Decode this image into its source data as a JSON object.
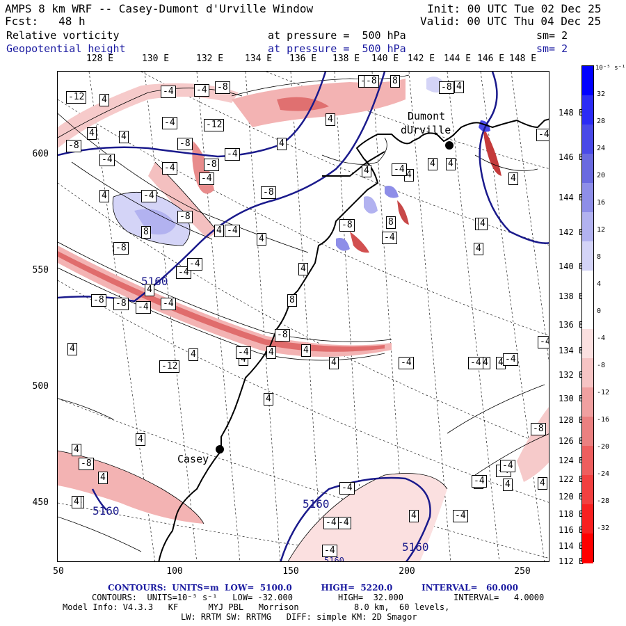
{
  "header": {
    "title": "AMPS 8 km WRF -- Casey-Dumont d'Urville Window",
    "init": "Init: 00 UTC Tue 02 Dec 25",
    "forecast": "Fcst:   48 h",
    "valid": "Valid: 00 UTC Thu 04 Dec 25",
    "field1_name": "Relative vorticity",
    "field1_level": "at pressure =  500 hPa",
    "field1_sm": "sm= 2",
    "field2_name": "Geopotential height",
    "field2_level": "at pressure =  500 hPa",
    "field2_sm": "sm= 2"
  },
  "axes": {
    "x_ticks": [
      "50",
      "100",
      "150",
      "200",
      "250"
    ],
    "y_ticks": [
      "600",
      "550",
      "500",
      "450"
    ],
    "top_lon_labels": [
      "128 E",
      "130 E",
      "132 E",
      "134 E",
      "136 E",
      "138 E",
      "140 E",
      "142 E",
      "144 E",
      "146 E",
      "148 E"
    ],
    "right_lon_labels": [
      "148 E",
      "146 E",
      "144 E",
      "142 E",
      "140 E",
      "138 E",
      "136 E",
      "134 E",
      "132 E",
      "130 E",
      "128 E",
      "126 E",
      "124 E",
      "122 E",
      "120 E",
      "118 E",
      "116 E",
      "114 E",
      "112 E"
    ]
  },
  "colorbar": {
    "unit": "10⁻⁵ s⁻¹",
    "labels": [
      "32",
      "28",
      "24",
      "20",
      "16",
      "12",
      "8",
      "4",
      "0",
      "-4",
      "-8",
      "-12",
      "-16",
      "-20",
      "-24",
      "-28",
      "-32"
    ],
    "colors": [
      "#0000ff",
      "#2b2bf5",
      "#4a4ae8",
      "#6a6ae0",
      "#8e8ee8",
      "#b2b2f0",
      "#d4d4f7",
      "#ffffff",
      "#ffffff",
      "#fbe0e0",
      "#f6c4c4",
      "#f0a0a0",
      "#eb8080",
      "#ee5e5e",
      "#f24040",
      "#f82020",
      "#ff0000"
    ]
  },
  "places": {
    "casey": "Casey",
    "dumont1": "Dumont",
    "dumont2": "dUrville"
  },
  "height_labels": [
    "5160",
    "5160",
    "5160",
    "5160",
    "5160"
  ],
  "vorticity_labels": [
    "-12",
    "4",
    "-4",
    "-4",
    "-8",
    "-4",
    "-8",
    "-12",
    "-8",
    "4",
    "4",
    "-4",
    "-4",
    "-4",
    "-8",
    "-8",
    "-4",
    "-4",
    "4",
    "-4",
    "-8",
    "-4",
    "4",
    "-8",
    "4",
    "4",
    "4",
    "4",
    "-4",
    "4",
    "4",
    "-4",
    "8",
    "-8",
    "-8",
    "-4",
    "4",
    "8",
    "4",
    "8",
    "-8",
    "-8",
    "-8",
    "4",
    "-8",
    "4",
    "4",
    "4",
    "4",
    "8",
    "8",
    "-4",
    "4",
    "-4",
    "4",
    "4",
    "4",
    "4",
    "-4",
    "4",
    "-4",
    "-4",
    "4",
    "-12",
    "-4",
    "-8",
    "4",
    "4",
    "4",
    "4",
    "4",
    "4",
    "4",
    "-4",
    "4",
    "4",
    "-8",
    "4",
    "-4",
    "-4",
    "4",
    "-4",
    "-4",
    "-4",
    "-4",
    "-4",
    "-4",
    "-4",
    "-4",
    "4"
  ],
  "footer": {
    "line1": "CONTOURS:  UNITS=m  LOW=  5100.0          HIGH=  5220.0          INTERVAL=   60.000",
    "line2": "CONTOURS:  UNITS=10⁻⁵ s⁻¹   LOW= -32.000         HIGH=  32.000          INTERVAL=   4.0000",
    "line3": "Model Info: V4.3.3   KF      MYJ PBL   Morrison           8.0 km,  60 levels,",
    "line4": "LW: RRTM SW: RRTMG   DIFF: simple KM: 2D Smagor"
  }
}
